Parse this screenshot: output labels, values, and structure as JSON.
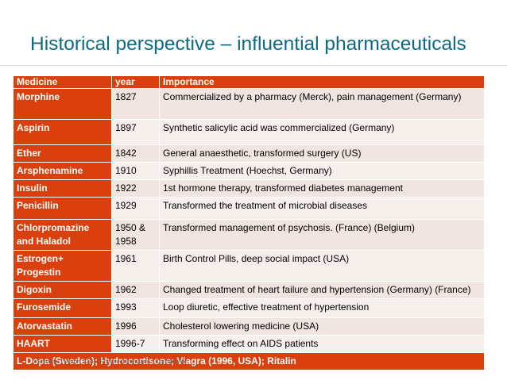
{
  "title": "Historical perspective – influential pharmaceuticals",
  "table": {
    "headers": [
      "Medicine",
      "year",
      "Importance"
    ],
    "rows": [
      {
        "medicine": "Morphine",
        "year": "1827",
        "importance": "Commercialized by a pharmacy (Merck), pain management (Germany)"
      },
      {
        "medicine": "Aspirin",
        "year": "1897",
        "importance": "Synthetic salicylic acid was commercialized  (Germany)"
      },
      {
        "medicine": "Ether",
        "year": "1842",
        "importance": "General anaesthetic, transformed surgery (US)"
      },
      {
        "medicine": "Arsphenamine",
        "year": "1910",
        "importance": "Syphillis Treatment (Hoechst, Germany)"
      },
      {
        "medicine": "Insulin",
        "year": "1922",
        "importance": "1st hormone therapy, transformed diabetes management"
      },
      {
        "medicine": "Penicillin",
        "year": "1929",
        "importance": "Transformed the treatment of microbial diseases"
      },
      {
        "medicine": "Chlorpromazine and Haladol",
        "year": "1950 & 1958",
        "importance": "Transformed management of psychosis. (France) (Belgium)"
      },
      {
        "medicine": "Estrogen+ Progestin",
        "year": "1961",
        "importance": "Birth Control Pills, deep social impact (USA)"
      },
      {
        "medicine": "Digoxin",
        "year": "1962",
        "importance": "Changed treatment of heart failure and hypertension (Germany) (France)"
      },
      {
        "medicine": "Furosemide",
        "year": " 1993",
        "importance": "Loop diuretic, effective treatment of hypertension"
      },
      {
        "medicine": "Atorvastatin",
        "year": "1996",
        "importance": "Cholesterol lowering medicine (USA)"
      },
      {
        "medicine": "HAART",
        "year": "1996-7",
        "importance": "Transforming effect on AIDS patients"
      }
    ],
    "footer": "L-Dopa (Sweden); Hydrocortisone; Viagra (1996, USA); Ritalin"
  },
  "footer_note": "5   Sthohan | March 2013 | Pharma Innovation | Confidential",
  "colors": {
    "title": "#0d6a86",
    "accent": "#d9400e",
    "cell": "#f0e5e1",
    "cell_alt": "#f7efeb"
  }
}
